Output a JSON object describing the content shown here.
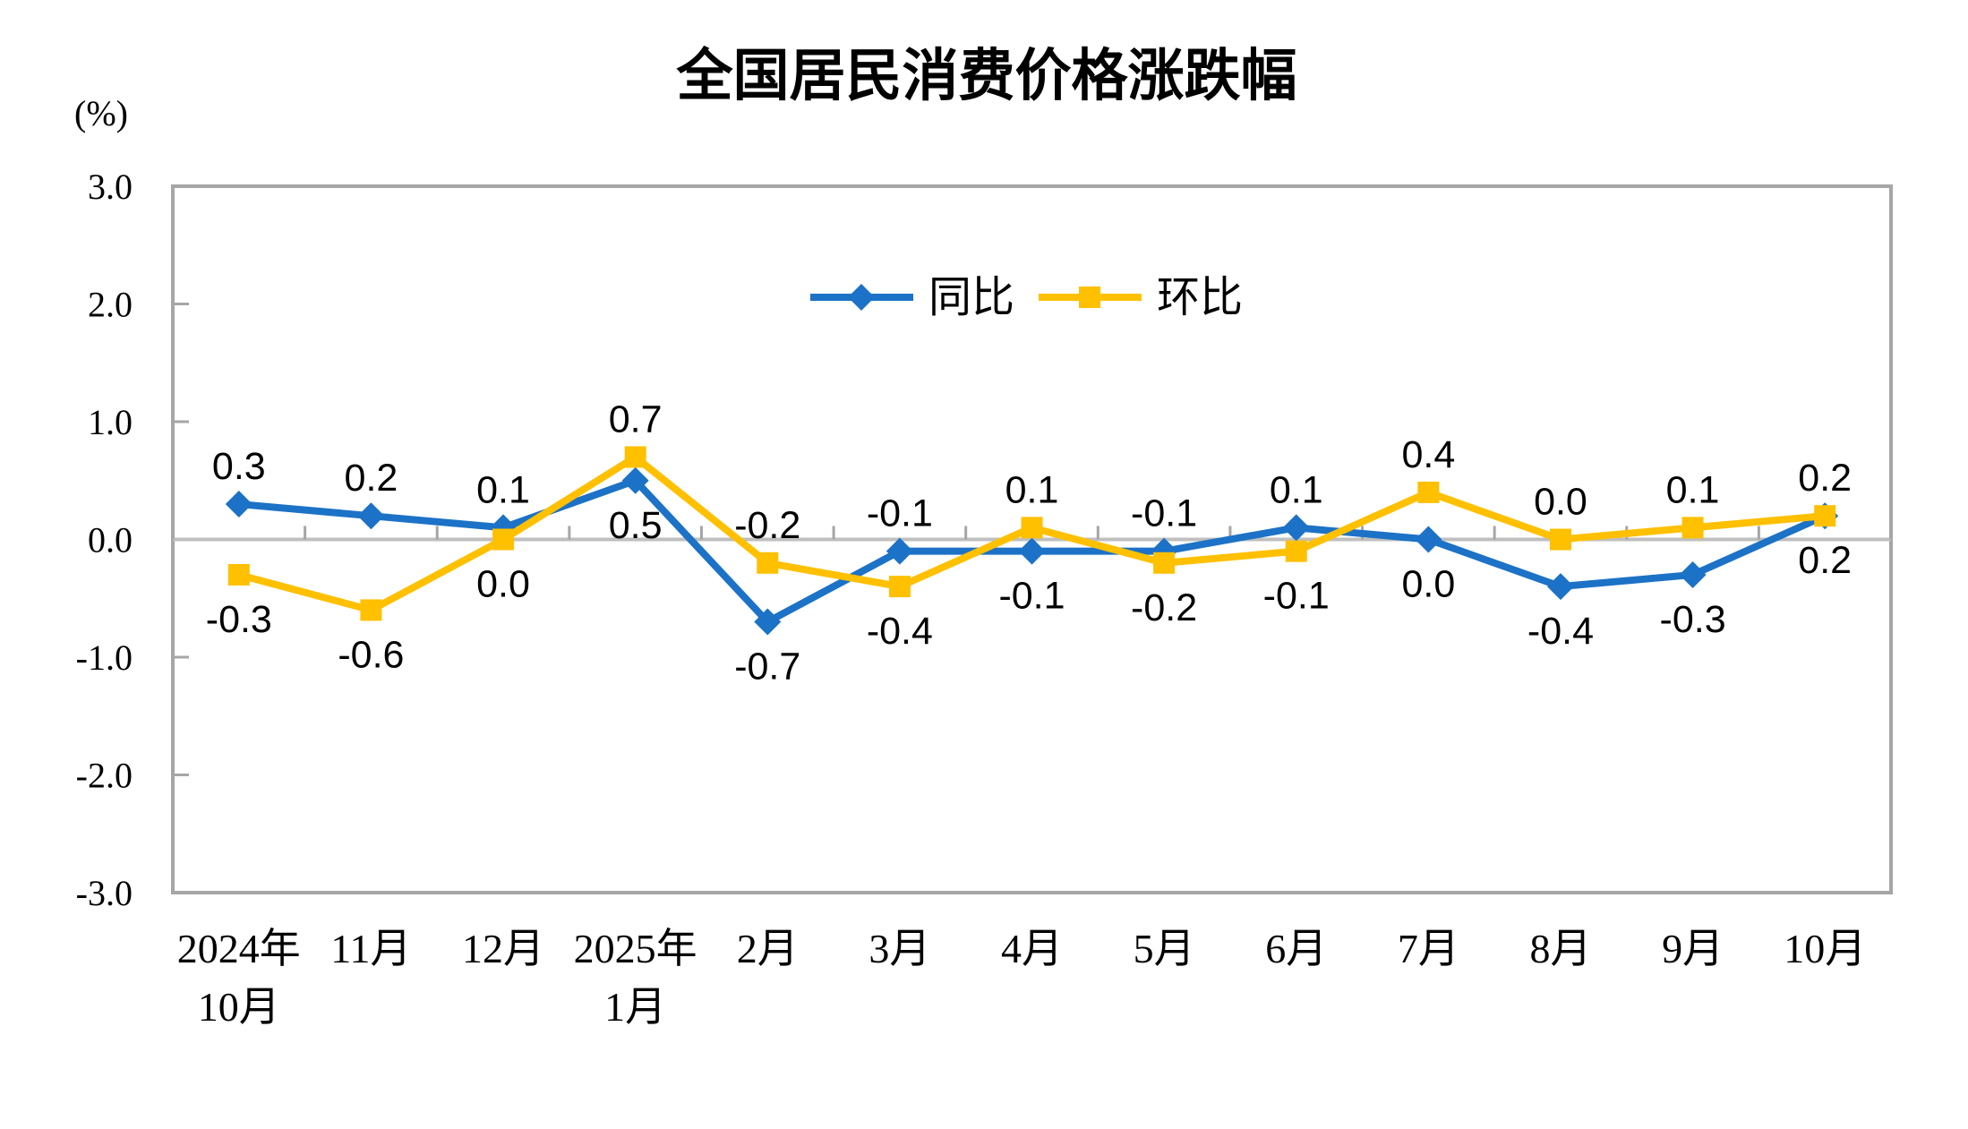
{
  "page": {
    "background": "#FFFFFF"
  },
  "chart_data": {
    "type": "line",
    "title": "全国居民消费价格涨跌幅",
    "ylabel": "(%)",
    "xlabel": "",
    "ylim": [
      -3.0,
      3.0
    ],
    "yticks": [
      3.0,
      2.0,
      1.0,
      0.0,
      -1.0,
      -2.0,
      -3.0
    ],
    "grid": false,
    "zero_line": true,
    "data_labels": true,
    "legend_position": "inside-top-center",
    "categories": [
      "2024年\n10月",
      "11月",
      "12月",
      "2025年\n1月",
      "2月",
      "3月",
      "4月",
      "5月",
      "6月",
      "7月",
      "8月",
      "9月",
      "10月"
    ],
    "series": [
      {
        "name": "同比",
        "marker": "diamond",
        "color": "#1C72C6",
        "values": [
          0.3,
          0.2,
          0.1,
          0.5,
          -0.7,
          -0.1,
          -0.1,
          -0.1,
          0.1,
          0.0,
          -0.4,
          -0.3,
          0.2
        ]
      },
      {
        "name": "环比",
        "marker": "square",
        "color": "#FFC000",
        "values": [
          -0.3,
          -0.6,
          0.0,
          0.7,
          -0.2,
          -0.4,
          0.1,
          -0.2,
          -0.1,
          0.4,
          0.0,
          0.1,
          0.2
        ]
      }
    ]
  },
  "colors": {
    "axis_border": "#A6A6A6",
    "zero_line": "#BFBFBF",
    "tick": "#A6A6A6",
    "text": "#000000",
    "series_yoy": "#1C72C6",
    "series_mom": "#FFC000"
  }
}
